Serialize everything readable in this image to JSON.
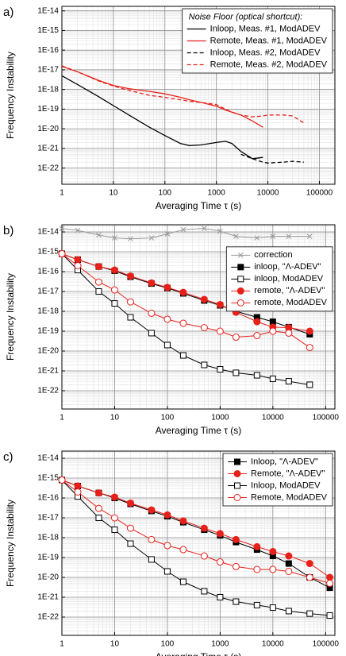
{
  "chart_data": [
    {
      "panel_label": "a)",
      "type": "line",
      "xlabel": "Averaging Time τ (s)",
      "ylabel": "Frequency Instability",
      "xscale": "log",
      "yscale": "log",
      "xlim": [
        1,
        200000
      ],
      "ylim": [
        1.5e-23,
        1.7e-14
      ],
      "xticks": [
        1,
        10,
        100,
        1000,
        10000,
        100000
      ],
      "yticks": [
        {
          "value": 1e-14,
          "label": "1E-14"
        },
        {
          "value": 1e-15,
          "label": "1E-15"
        },
        {
          "value": 1e-16,
          "label": "1E-16"
        },
        {
          "value": 1e-17,
          "label": "1E-17"
        },
        {
          "value": 1e-18,
          "label": "1E-18"
        },
        {
          "value": 1e-19,
          "label": "1E-19"
        },
        {
          "value": 1e-20,
          "label": "1E-20"
        },
        {
          "value": 1e-21,
          "label": "1E-21"
        },
        {
          "value": 1e-22,
          "label": "1E-22"
        }
      ],
      "grid": true,
      "minor_grid": true,
      "legend": "upper right",
      "legend_title": "Noise Floor (optical shortcut):",
      "x": [
        1,
        2,
        5,
        10,
        20,
        50,
        100,
        200,
        300,
        500,
        1000,
        1500,
        2000,
        3000,
        5000,
        8000,
        10000,
        20000,
        30000,
        50000
      ],
      "series": [
        {
          "name": "Inloop, Meas. #1, ModADEV",
          "color": "#000000",
          "dash": false,
          "marker": null,
          "values": [
            5e-18,
            1.8e-18,
            4.5e-19,
            1.5e-19,
            5e-20,
            1.2e-20,
            4.5e-21,
            1.8e-21,
            1.4e-21,
            1.5e-21,
            2e-21,
            2.3e-21,
            1.8e-21,
            7e-22,
            3e-22,
            3.5e-22,
            null,
            null,
            null,
            null
          ]
        },
        {
          "name": "Remote, Meas. #1, ModADEV",
          "color": "#e8201a",
          "dash": false,
          "marker": null,
          "values": [
            1.5e-17,
            8e-18,
            3e-18,
            1.6e-18,
            1.1e-18,
            8e-19,
            6e-19,
            4e-19,
            3e-19,
            2.2e-19,
            1.4e-19,
            9e-20,
            7e-20,
            5e-20,
            2.5e-20,
            1.2e-20,
            null,
            null,
            null,
            null
          ]
        },
        {
          "name": "Inloop, Meas. #2, ModADEV",
          "color": "#000000",
          "dash": true,
          "marker": null,
          "values": [
            null,
            null,
            null,
            null,
            null,
            null,
            null,
            null,
            null,
            null,
            null,
            null,
            null,
            5e-22,
            3e-22,
            2e-22,
            1.8e-22,
            2e-22,
            2.2e-22,
            2e-22
          ]
        },
        {
          "name": "Remote, Meas. #2, ModADEV",
          "color": "#e8201a",
          "dash": true,
          "marker": null,
          "values": [
            1.6e-17,
            8e-18,
            2.8e-18,
            1.5e-18,
            9e-19,
            5e-19,
            4e-19,
            3e-19,
            2.5e-19,
            2.2e-19,
            1.7e-19,
            1e-19,
            7e-20,
            5e-20,
            4e-20,
            4.5e-20,
            5e-20,
            5e-20,
            4.5e-20,
            2e-20
          ]
        }
      ]
    },
    {
      "panel_label": "b)",
      "type": "line",
      "xlabel": "Averaging Time τ (s)",
      "ylabel": "Frequency Instability",
      "xscale": "log",
      "yscale": "log",
      "xlim": [
        1,
        150000
      ],
      "ylim": [
        1.2e-23,
        2.3e-14
      ],
      "xticks": [
        1,
        10,
        100,
        1000,
        10000,
        100000
      ],
      "yticks": [
        {
          "value": 1e-14,
          "label": "1E-14"
        },
        {
          "value": 1e-15,
          "label": "1E-15"
        },
        {
          "value": 1e-16,
          "label": "1E-16"
        },
        {
          "value": 1e-17,
          "label": "1E-17"
        },
        {
          "value": 1e-18,
          "label": "1E-18"
        },
        {
          "value": 1e-19,
          "label": "1E-19"
        },
        {
          "value": 1e-20,
          "label": "1E-20"
        },
        {
          "value": 1e-21,
          "label": "1E-21"
        },
        {
          "value": 1e-22,
          "label": "1E-22"
        }
      ],
      "grid": true,
      "minor_grid": true,
      "legend": "right",
      "x": [
        1,
        2,
        5,
        10,
        20,
        50,
        100,
        200,
        500,
        1000,
        2000,
        5000,
        10000,
        20000,
        50000
      ],
      "series": [
        {
          "name": "correction",
          "color": "#999999",
          "dash": false,
          "marker": "x",
          "filled": false,
          "values": [
            1.5e-14,
            1.2e-14,
            7e-15,
            5e-15,
            4.5e-15,
            5e-15,
            8e-15,
            1.3e-14,
            1.5e-14,
            1.1e-14,
            6e-15,
            5e-15,
            6e-15,
            6e-15,
            6e-15
          ]
        },
        {
          "name": "inloop, \"Λ-ADEV\"",
          "color": "#000000",
          "dash": false,
          "marker": "square",
          "filled": true,
          "values": [
            8e-16,
            4e-16,
            1.8e-16,
            1.1e-16,
            5.5e-17,
            2.5e-17,
            1.5e-17,
            8e-18,
            3.5e-18,
            2e-18,
            1e-18,
            5e-19,
            3e-19,
            1.6e-19,
            7e-20
          ]
        },
        {
          "name": "inloop, ModADEV",
          "color": "#000000",
          "dash": false,
          "marker": "square",
          "filled": false,
          "values": [
            8e-16,
            1.2e-16,
            1e-17,
            2.5e-18,
            5e-19,
            8e-20,
            2e-20,
            6e-21,
            2e-21,
            1.2e-21,
            8e-22,
            6e-22,
            4e-22,
            3e-22,
            2e-22
          ]
        },
        {
          "name": "remote, \"Λ-ADEV\"",
          "color": "#e8201a",
          "dash": false,
          "marker": "circle",
          "filled": true,
          "values": [
            8e-16,
            4e-16,
            1.8e-16,
            1.2e-16,
            6e-17,
            2.7e-17,
            1.6e-17,
            9e-18,
            4e-18,
            2.2e-18,
            9e-19,
            3e-19,
            1.6e-19,
            1.5e-19,
            1e-19
          ]
        },
        {
          "name": "remote, ModADEV",
          "color": "#e8201a",
          "dash": false,
          "marker": "circle",
          "filled": false,
          "values": [
            8e-16,
            2e-16,
            3e-17,
            1.2e-17,
            3e-18,
            8e-19,
            4e-19,
            2.5e-19,
            1.5e-19,
            1e-19,
            5e-20,
            6e-20,
            1e-19,
            8e-20,
            1.5e-20
          ]
        }
      ]
    },
    {
      "panel_label": "c)",
      "type": "line",
      "xlabel": "Averaging Time τ (s)",
      "ylabel": "Frequency Instability",
      "xscale": "log",
      "yscale": "log",
      "xlim": [
        1,
        150000
      ],
      "ylim": [
        1.2e-23,
        2.3e-14
      ],
      "xticks": [
        1,
        10,
        100,
        1000,
        10000,
        100000
      ],
      "yticks": [
        {
          "value": 1e-14,
          "label": "1E-14"
        },
        {
          "value": 1e-15,
          "label": "1E-15"
        },
        {
          "value": 1e-16,
          "label": "1E-16"
        },
        {
          "value": 1e-17,
          "label": "1E-17"
        },
        {
          "value": 1e-18,
          "label": "1E-18"
        },
        {
          "value": 1e-19,
          "label": "1E-19"
        },
        {
          "value": 1e-20,
          "label": "1E-20"
        },
        {
          "value": 1e-21,
          "label": "1E-21"
        },
        {
          "value": 1e-22,
          "label": "1E-22"
        }
      ],
      "grid": true,
      "minor_grid": true,
      "legend": "upper right",
      "x": [
        1,
        2,
        5,
        10,
        20,
        50,
        100,
        200,
        500,
        1000,
        2000,
        5000,
        10000,
        20000,
        50000,
        120000
      ],
      "series": [
        {
          "name": "Inloop, \"Λ-ADEV\"",
          "color": "#000000",
          "dash": false,
          "marker": "square",
          "filled": true,
          "values": [
            8e-16,
            4e-16,
            1.8e-16,
            1e-16,
            5e-17,
            2.2e-17,
            1.2e-17,
            6e-18,
            2.5e-18,
            1.3e-18,
            6e-19,
            2.5e-19,
            1.2e-19,
            5e-20,
            1e-20,
            3e-21
          ]
        },
        {
          "name": "Remote, \"Λ-ADEV\"",
          "color": "#e8201a",
          "dash": false,
          "marker": "circle",
          "filled": true,
          "values": [
            8e-16,
            4e-16,
            1.8e-16,
            1.1e-16,
            5.5e-17,
            2.5e-17,
            1.4e-17,
            7e-18,
            3e-18,
            1.6e-18,
            8e-19,
            3.5e-19,
            2e-19,
            1.2e-19,
            5e-20,
            1e-20
          ]
        },
        {
          "name": "Inloop, ModADEV",
          "color": "#000000",
          "dash": false,
          "marker": "square",
          "filled": false,
          "values": [
            8e-16,
            1.2e-16,
            1e-17,
            2.5e-18,
            5e-19,
            8e-20,
            2e-20,
            6e-21,
            2e-21,
            1e-21,
            6e-22,
            4e-22,
            3e-22,
            2e-22,
            1.5e-22,
            1.2e-22
          ]
        },
        {
          "name": "Remote, ModADEV",
          "color": "#e8201a",
          "dash": false,
          "marker": "circle",
          "filled": false,
          "values": [
            8e-16,
            2e-16,
            3e-17,
            1e-17,
            3e-18,
            8e-19,
            4e-19,
            2.5e-19,
            1.2e-19,
            6e-20,
            3.5e-20,
            2.5e-20,
            2.5e-20,
            2e-20,
            1e-20,
            5e-21
          ]
        }
      ]
    }
  ]
}
